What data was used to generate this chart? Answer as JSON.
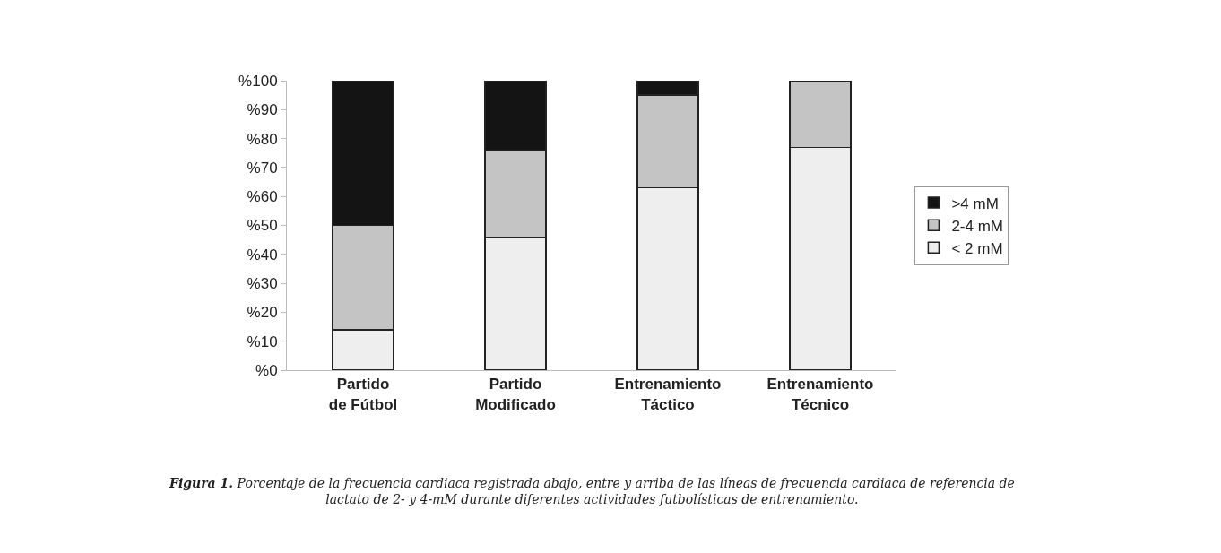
{
  "chart_data": {
    "type": "bar",
    "stacked": true,
    "categories": [
      "Partido\nde Fútbol",
      "Partido\nModificado",
      "Entrenamiento\nTáctico",
      "Entrenamiento\nTécnico"
    ],
    "series": [
      {
        "name": "< 2 mM",
        "color": "#eeeeee",
        "values": [
          14,
          46,
          63,
          77
        ]
      },
      {
        "name": "2-4 mM",
        "color": "#c4c4c4",
        "values": [
          36,
          30,
          32,
          23
        ]
      },
      {
        "name": ">4 mM",
        "color": "#141414",
        "values": [
          50,
          24,
          5,
          0
        ]
      }
    ],
    "ylim": [
      0,
      100
    ],
    "yticks": [
      {
        "value": 0,
        "label": "%0"
      },
      {
        "value": 10,
        "label": "%10"
      },
      {
        "value": 20,
        "label": "%20"
      },
      {
        "value": 30,
        "label": "%30"
      },
      {
        "value": 40,
        "label": "%40"
      },
      {
        "value": 50,
        "label": "%50"
      },
      {
        "value": 60,
        "label": "%60"
      },
      {
        "value": 70,
        "label": "%70"
      },
      {
        "value": 80,
        "label": "%80"
      },
      {
        "value": 90,
        "label": "%90"
      },
      {
        "value": 100,
        "label": "%100"
      }
    ],
    "legend": "right",
    "annotations": [
      "Figura 1. Porcentaje de la frecuencia cardiaca registrada abajo, entre y arriba de las líneas de frecuencia cardiaca de referencia de\nlactato de 2- y 4-mM durante diferentes actividades futbolísticas de entrenamiento."
    ]
  }
}
